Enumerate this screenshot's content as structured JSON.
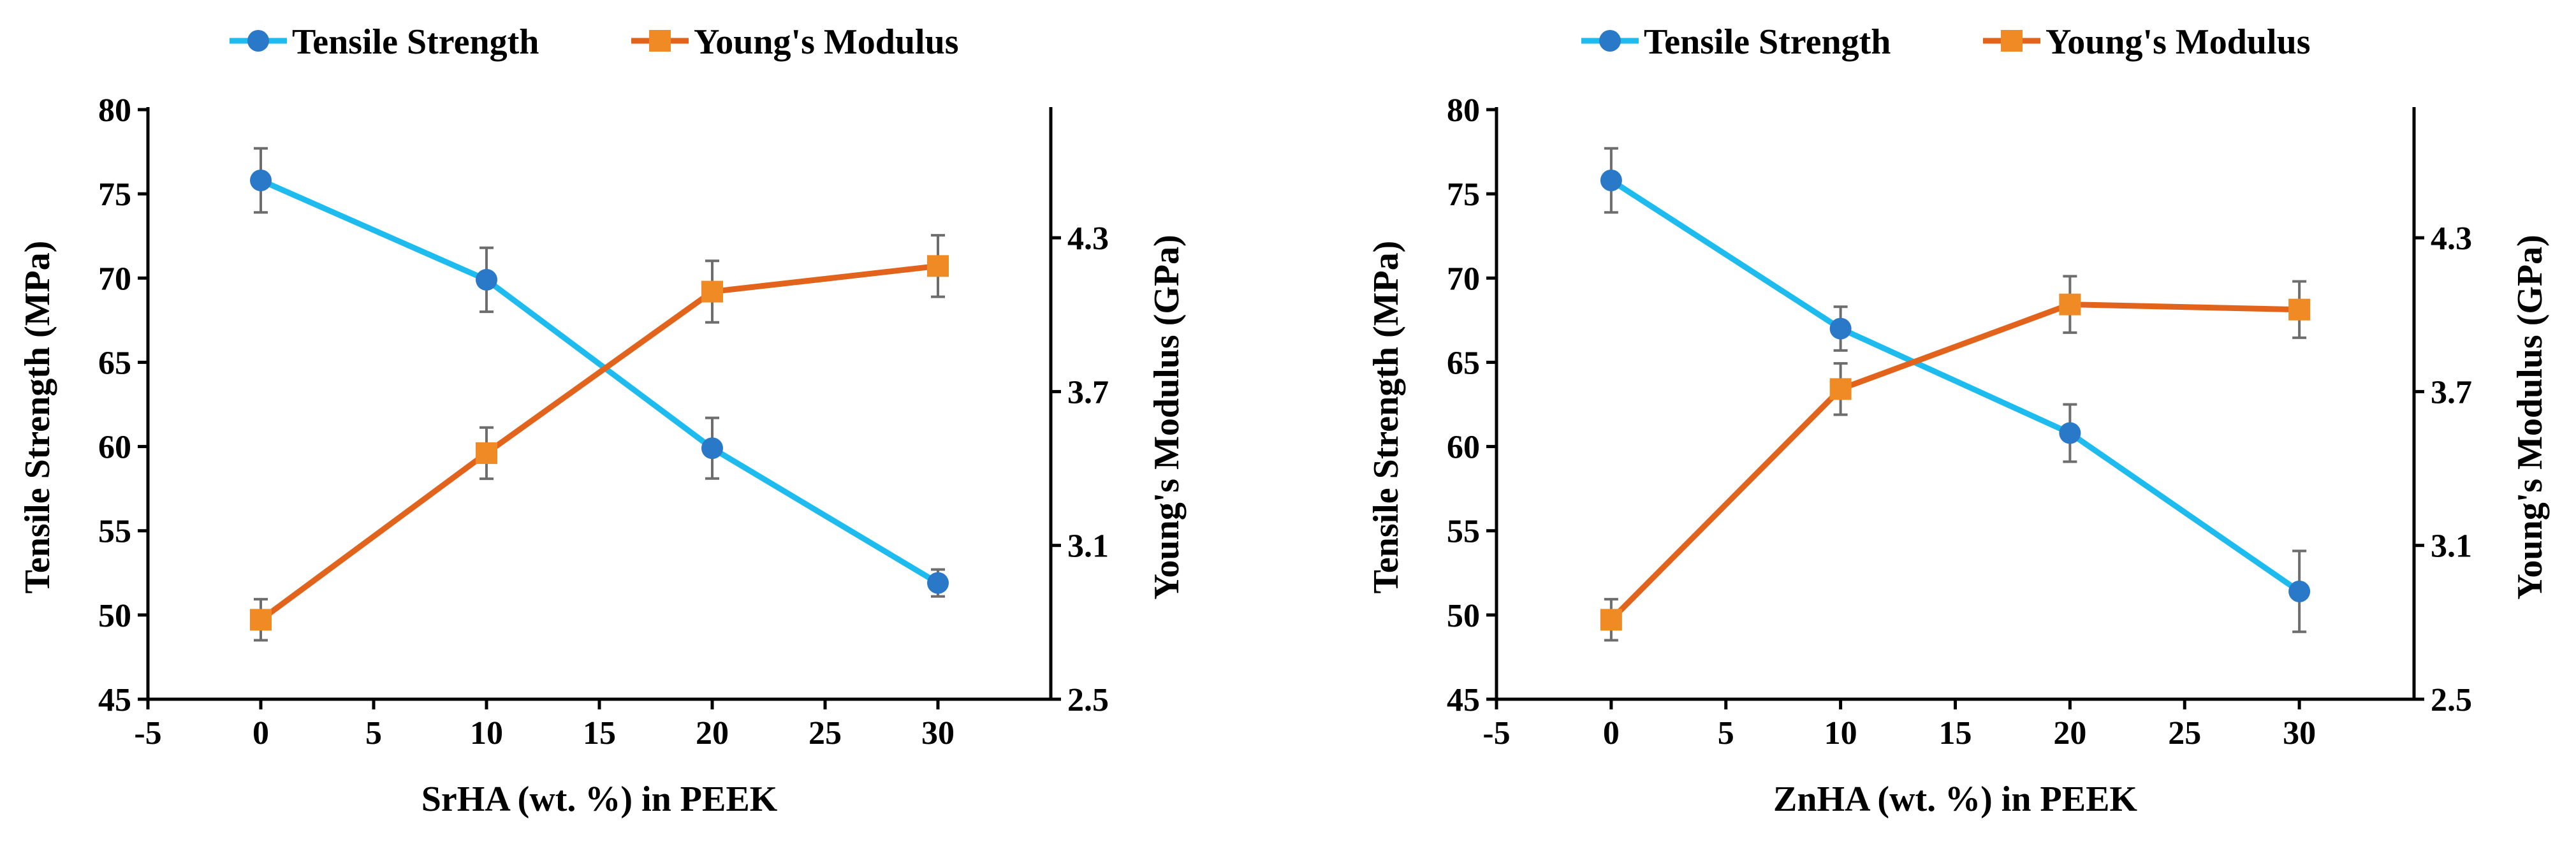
{
  "colors": {
    "tensile": "#1ebbee",
    "tensile_marker": "#2a78c8",
    "modulus": "#e2631c",
    "modulus_marker": "#f08a24",
    "axis": "#000000",
    "errorbar": "#6d6d6d"
  },
  "chart_data": [
    {
      "type": "line",
      "xlabel": "SrHA (wt. %) in PEEK",
      "ylabel": "Tensile Strength (MPa)",
      "y2label": "Young's Modulus (GPa)",
      "xlim": [
        -5,
        35
      ],
      "ylim": [
        45,
        80
      ],
      "y2lim": [
        2.5,
        4.8
      ],
      "xticks": [
        -5,
        0,
        5,
        10,
        15,
        20,
        25,
        30
      ],
      "yticks": [
        45,
        50,
        55,
        60,
        65,
        70,
        75,
        80
      ],
      "y2ticks": [
        2.5,
        3.1,
        3.7,
        4.3
      ],
      "x": [
        0,
        10,
        20,
        30
      ],
      "series": [
        {
          "name": "Tensile Strength",
          "axis": "left",
          "marker": "circle",
          "values": [
            75.8,
            69.9,
            59.9,
            51.9
          ],
          "errors": [
            1.9,
            1.9,
            1.8,
            0.8
          ]
        },
        {
          "name": "Young's Modulus",
          "axis": "right",
          "marker": "square",
          "values": [
            2.81,
            3.46,
            4.09,
            4.19
          ],
          "errors": [
            0.08,
            0.1,
            0.12,
            0.12
          ]
        }
      ]
    },
    {
      "type": "line",
      "xlabel": "ZnHA (wt. %) in PEEK",
      "ylabel": "Tensile Strength (MPa)",
      "y2label": "Young's Modulus (GPa)",
      "xlim": [
        -5,
        35
      ],
      "ylim": [
        45,
        80
      ],
      "y2lim": [
        2.5,
        4.8
      ],
      "xticks": [
        -5,
        0,
        5,
        10,
        15,
        20,
        25,
        30
      ],
      "yticks": [
        45,
        50,
        55,
        60,
        65,
        70,
        75,
        80
      ],
      "y2ticks": [
        2.5,
        3.1,
        3.7,
        4.3
      ],
      "x": [
        0,
        10,
        20,
        30
      ],
      "series": [
        {
          "name": "Tensile Strength",
          "axis": "left",
          "marker": "circle",
          "values": [
            75.8,
            67.0,
            60.8,
            51.4
          ],
          "errors": [
            1.9,
            1.3,
            1.7,
            2.4
          ]
        },
        {
          "name": "Young's Modulus",
          "axis": "right",
          "marker": "square",
          "values": [
            2.81,
            3.71,
            4.04,
            4.02
          ],
          "errors": [
            0.08,
            0.1,
            0.11,
            0.11
          ]
        }
      ]
    }
  ]
}
